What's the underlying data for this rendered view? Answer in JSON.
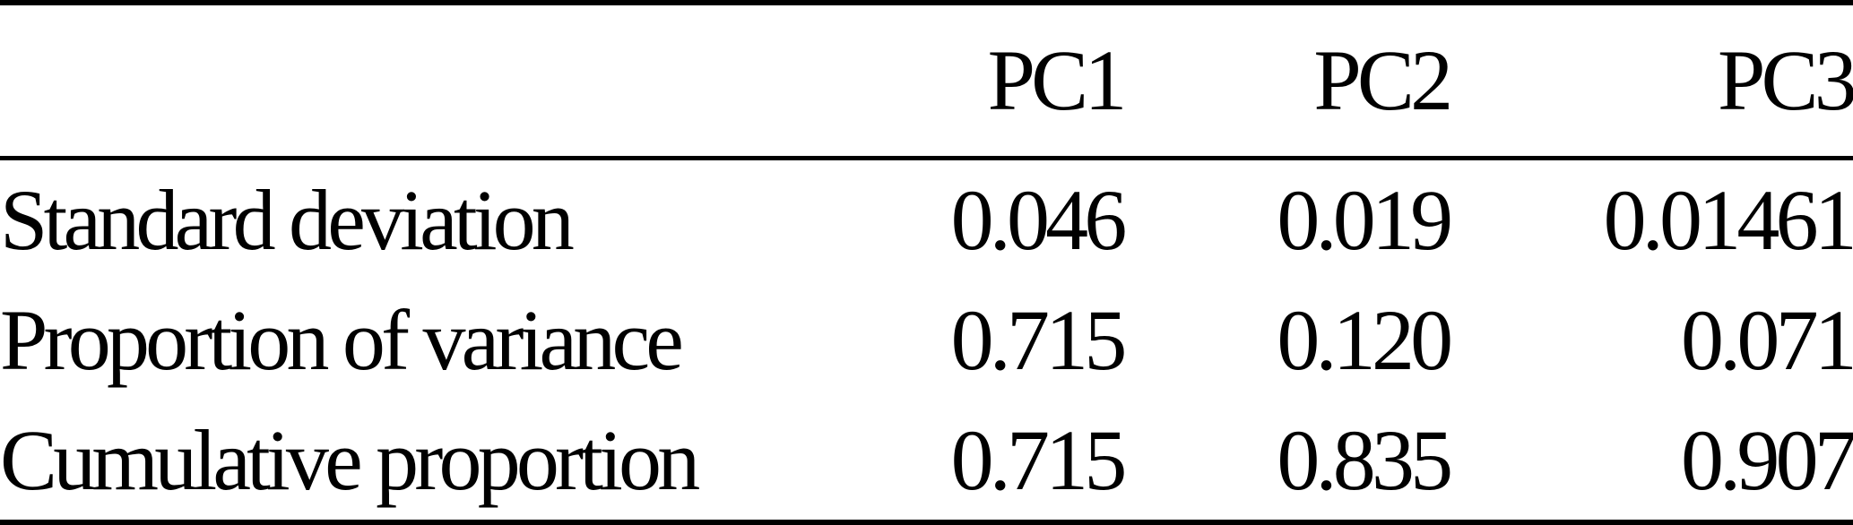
{
  "table": {
    "columns": [
      "",
      "PC1",
      "PC2",
      "PC3"
    ],
    "rows": [
      {
        "label": "Standard deviation",
        "values": [
          "0.046",
          "0.019",
          "0.01461"
        ]
      },
      {
        "label": "Proportion of variance",
        "values": [
          "0.715",
          "0.120",
          "0.071"
        ]
      },
      {
        "label": "Cumulative proportion",
        "values": [
          "0.715",
          "0.835",
          "0.907"
        ]
      }
    ]
  },
  "colors": {
    "text": "#000000",
    "background": "#ffffff",
    "rule": "#000000"
  },
  "chart_data": {
    "type": "table",
    "columns": [
      "",
      "PC1",
      "PC2",
      "PC3"
    ],
    "rows": [
      [
        "Standard deviation",
        0.046,
        0.019,
        0.01461
      ],
      [
        "Proportion of variance",
        0.715,
        0.12,
        0.071
      ],
      [
        "Cumulative proportion",
        0.715,
        0.835,
        0.907
      ]
    ]
  }
}
